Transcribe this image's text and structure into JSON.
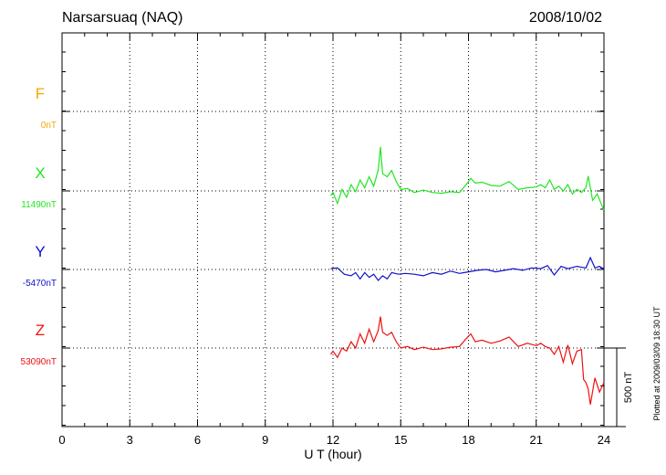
{
  "header": {
    "station": "Narsarsuaq (NAQ)",
    "date": "2008/10/02"
  },
  "footer": {
    "plotted_note": "Plotted at 2009/03/09 18:30 UT"
  },
  "chart_data": {
    "type": "line",
    "title": "Narsarsuaq (NAQ)",
    "xlabel": "U T (hour)",
    "ylabel": "",
    "xlim": [
      0,
      24
    ],
    "xticks": [
      0,
      3,
      6,
      9,
      12,
      15,
      18,
      21,
      24
    ],
    "grid": true,
    "scale_bar": {
      "label": "500 nT",
      "value_nT": 500
    },
    "series": [
      {
        "name": "F",
        "baseline_label": "0nT",
        "baseline_nT": 0,
        "color": "#f5a800",
        "x": [],
        "y": []
      },
      {
        "name": "X",
        "baseline_label": "11490nT",
        "baseline_nT": 11490,
        "color": "#22e622",
        "x": [
          11.9,
          12.0,
          12.2,
          12.4,
          12.6,
          12.8,
          13.0,
          13.2,
          13.4,
          13.6,
          13.8,
          14.0,
          14.1,
          14.2,
          14.4,
          14.6,
          14.8,
          15.0,
          15.3,
          15.6,
          16.0,
          16.4,
          16.8,
          17.2,
          17.6,
          17.9,
          18.1,
          18.3,
          18.6,
          19.0,
          19.4,
          19.8,
          20.2,
          20.6,
          21.0,
          21.2,
          21.4,
          21.6,
          21.8,
          22.0,
          22.2,
          22.4,
          22.6,
          22.8,
          23.0,
          23.2,
          23.3,
          23.5,
          23.7,
          23.9,
          24.0
        ],
        "y": [
          -30,
          -10,
          -80,
          10,
          -40,
          40,
          -5,
          70,
          20,
          90,
          30,
          130,
          280,
          110,
          90,
          130,
          60,
          10,
          15,
          -10,
          5,
          -10,
          -15,
          -5,
          -10,
          40,
          80,
          50,
          55,
          35,
          30,
          60,
          10,
          20,
          25,
          40,
          20,
          70,
          10,
          30,
          0,
          40,
          -20,
          10,
          -10,
          20,
          95,
          -60,
          -20,
          -90,
          -120
        ]
      },
      {
        "name": "Y",
        "baseline_label": "-5470nT",
        "baseline_nT": -5470,
        "color": "#1010cc",
        "x": [
          11.9,
          12.2,
          12.5,
          12.8,
          13.0,
          13.2,
          13.4,
          13.6,
          13.8,
          14.0,
          14.2,
          14.4,
          14.6,
          14.9,
          15.2,
          15.6,
          16.0,
          16.4,
          16.8,
          17.2,
          17.6,
          18.0,
          18.4,
          18.8,
          19.2,
          19.6,
          20.0,
          20.4,
          20.8,
          21.2,
          21.5,
          21.8,
          22.1,
          22.4,
          22.8,
          23.2,
          23.4,
          23.6,
          23.8,
          24.0
        ],
        "y": [
          5,
          10,
          -30,
          -40,
          -20,
          -60,
          -20,
          -50,
          -30,
          -70,
          -40,
          -60,
          -20,
          -30,
          -25,
          -30,
          -40,
          -20,
          -30,
          -10,
          -25,
          -15,
          -5,
          0,
          -15,
          -5,
          5,
          -5,
          10,
          5,
          25,
          -35,
          20,
          5,
          20,
          10,
          75,
          10,
          20,
          0
        ]
      },
      {
        "name": "Z",
        "baseline_label": "53090nT",
        "baseline_nT": 53090,
        "color": "#ee1111",
        "x": [
          11.9,
          12.0,
          12.2,
          12.4,
          12.6,
          12.8,
          13.0,
          13.2,
          13.4,
          13.6,
          13.8,
          14.0,
          14.1,
          14.2,
          14.4,
          14.6,
          14.8,
          15.0,
          15.3,
          15.6,
          16.0,
          16.4,
          16.8,
          17.2,
          17.6,
          17.9,
          18.1,
          18.3,
          18.6,
          19.0,
          19.4,
          19.8,
          20.2,
          20.6,
          21.0,
          21.2,
          21.4,
          21.6,
          21.8,
          22.0,
          22.2,
          22.4,
          22.6,
          22.8,
          23.0,
          23.1,
          23.2,
          23.3,
          23.4,
          23.6,
          23.8,
          24.0
        ],
        "y": [
          -40,
          -20,
          -60,
          0,
          -20,
          40,
          0,
          90,
          30,
          120,
          40,
          110,
          200,
          100,
          80,
          100,
          40,
          0,
          10,
          -10,
          5,
          -10,
          -5,
          5,
          10,
          60,
          90,
          40,
          50,
          30,
          45,
          70,
          10,
          30,
          15,
          30,
          10,
          0,
          -40,
          10,
          -90,
          20,
          -100,
          -20,
          -10,
          -200,
          -220,
          -260,
          -360,
          -190,
          -280,
          -220
        ]
      }
    ]
  }
}
